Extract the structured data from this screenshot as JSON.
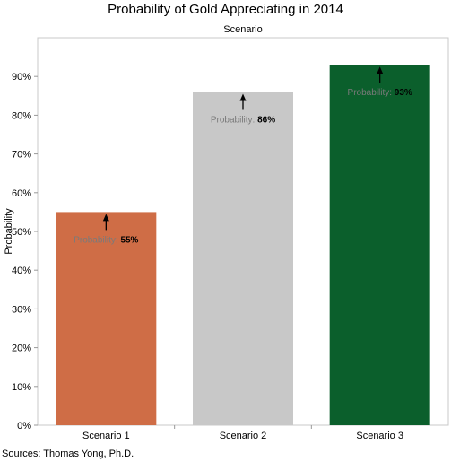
{
  "chart_data": {
    "type": "bar",
    "title": "Probability of Gold Appreciating in 2014",
    "column_header": "Scenario",
    "ylabel": "Probability",
    "xlabel": "",
    "categories": [
      "Scenario 1",
      "Scenario 2",
      "Scenario 3"
    ],
    "values": [
      55,
      86,
      93
    ],
    "value_labels": [
      "55%",
      "86%",
      "93%"
    ],
    "mark_label_prefix": "Probability:",
    "colors": [
      "#cf6d46",
      "#c8c8c8",
      "#0b5f2c"
    ],
    "ylim": [
      0,
      100
    ],
    "yticks": [
      0,
      10,
      20,
      30,
      40,
      50,
      60,
      70,
      80,
      90
    ],
    "ytick_labels": [
      "0%",
      "10%",
      "20%",
      "30%",
      "40%",
      "50%",
      "60%",
      "70%",
      "80%",
      "90%"
    ],
    "grid": false,
    "legend": "none"
  },
  "footer": {
    "source": "Sources: Thomas Yong, Ph.D."
  }
}
